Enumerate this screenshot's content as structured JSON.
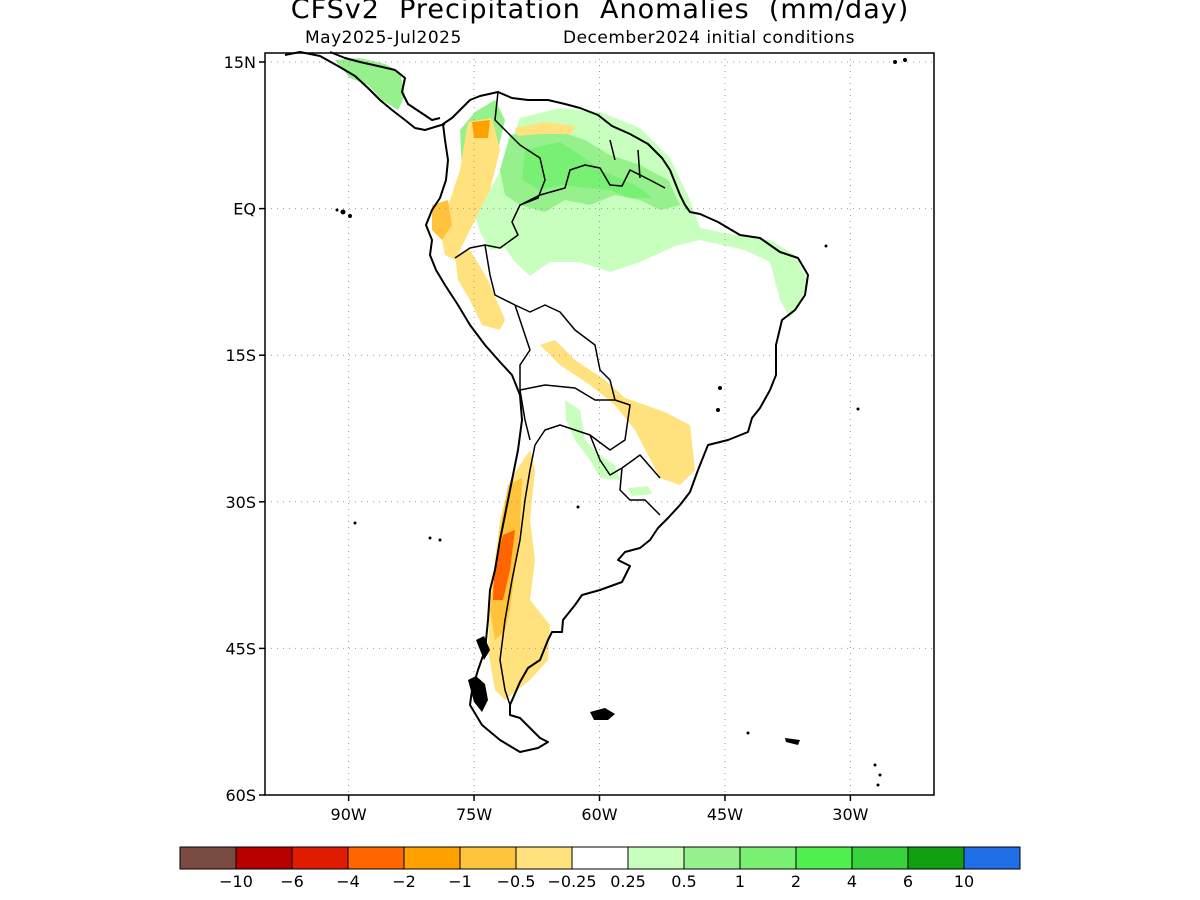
{
  "title": "CFSv2  Precipitation  Anomalies  (mm/day)",
  "subtitle_period": "May2025-Jul2025",
  "subtitle_init": "December2024  initial  conditions",
  "map": {
    "lat_labels": [
      "15N",
      "EQ",
      "15S",
      "30S",
      "45S",
      "60S"
    ],
    "lat_values": [
      15,
      0,
      -15,
      -30,
      -45,
      -60
    ],
    "lon_labels": [
      "90W",
      "75W",
      "60W",
      "45W",
      "30W"
    ],
    "lon_values": [
      -90,
      -75,
      -60,
      -45,
      -30
    ],
    "lon_range": [
      -100,
      -20
    ],
    "lat_range": [
      -60,
      16
    ],
    "grid": true
  },
  "legend": {
    "colors": [
      "#7a4b41",
      "#b90000",
      "#e01b00",
      "#ff6600",
      "#ffa200",
      "#ffc33c",
      "#ffe27d",
      "#ffffff",
      "#c8ffbe",
      "#96f08c",
      "#78f073",
      "#50f050",
      "#37d23c",
      "#0fa00f",
      "#1e6ee6"
    ],
    "labels": [
      "-10",
      "-6",
      "-4",
      "-2",
      "-1",
      "-0.5",
      "-0.25",
      "0.25",
      "0.5",
      "1",
      "2",
      "4",
      "6",
      "10"
    ]
  }
}
